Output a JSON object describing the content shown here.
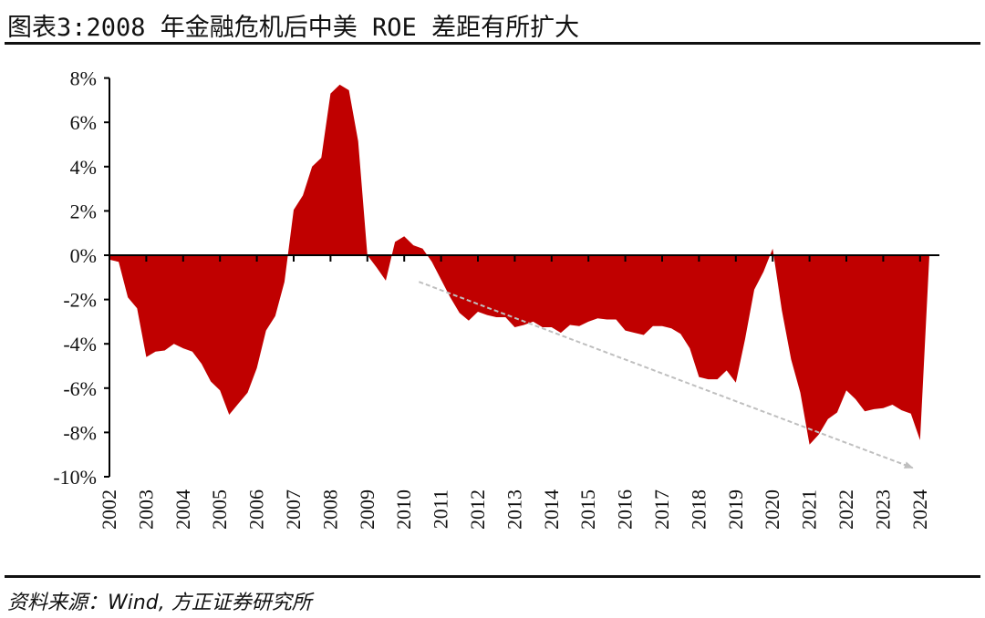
{
  "title": "图表3:2008 年金融危机后中美 ROE 差距有所扩大",
  "source": "资料来源：Wind, 方正证券研究所",
  "chart_data": {
    "type": "area",
    "title": "",
    "xlabel": "",
    "ylabel": "",
    "x_start": "2002Q1",
    "x_frequency": "quarterly",
    "xlim": [
      2002,
      2024.5
    ],
    "ylim": [
      -10,
      8
    ],
    "y_unit": "%",
    "grid": false,
    "legend": "none",
    "fill_color": "#C00000",
    "x_tick_labels": [
      "2002",
      "2003",
      "2004",
      "2005",
      "2006",
      "2007",
      "2008",
      "2009",
      "2010",
      "2011",
      "2012",
      "2013",
      "2014",
      "2015",
      "2016",
      "2017",
      "2018",
      "2019",
      "2020",
      "2021",
      "2022",
      "2023",
      "2024"
    ],
    "y_tick_labels": [
      "8%",
      "6%",
      "4%",
      "2%",
      "0%",
      "-2%",
      "-4%",
      "-6%",
      "-8%",
      "-10%"
    ],
    "y_ticks": [
      8,
      6,
      4,
      2,
      0,
      -2,
      -4,
      -6,
      -8,
      -10
    ],
    "values": [
      -0.2,
      -0.3,
      -1.9,
      -2.4,
      -4.6,
      -4.35,
      -4.3,
      -4.0,
      -4.2,
      -4.35,
      -4.9,
      -5.7,
      -6.1,
      -7.2,
      -6.7,
      -6.2,
      -5.1,
      -3.4,
      -2.75,
      -1.2,
      2.05,
      2.7,
      4.0,
      4.4,
      7.3,
      7.7,
      7.45,
      5.15,
      0.0,
      -0.55,
      -1.15,
      0.6,
      0.85,
      0.45,
      0.3,
      -0.3,
      -1.1,
      -1.9,
      -2.6,
      -2.95,
      -2.55,
      -2.7,
      -2.8,
      -2.8,
      -3.25,
      -3.15,
      -3.0,
      -3.25,
      -3.25,
      -3.5,
      -3.15,
      -3.2,
      -3.0,
      -2.85,
      -2.9,
      -2.9,
      -3.4,
      -3.5,
      -3.6,
      -3.2,
      -3.2,
      -3.3,
      -3.55,
      -4.2,
      -5.5,
      -5.6,
      -5.6,
      -5.2,
      -5.75,
      -3.8,
      -1.55,
      -0.75,
      0.3,
      -2.5,
      -4.7,
      -6.2,
      -8.55,
      -8.1,
      -7.4,
      -7.1,
      -6.1,
      -6.5,
      -7.05,
      -6.95,
      -6.9,
      -6.75,
      -7.0,
      -7.15,
      -8.35,
      -0.1
    ],
    "annotations": [
      {
        "type": "dashed-arrow",
        "color": "#BFBFBF",
        "from": [
          2010.4,
          -1.2
        ],
        "to": [
          2023.8,
          -9.6
        ]
      }
    ]
  }
}
